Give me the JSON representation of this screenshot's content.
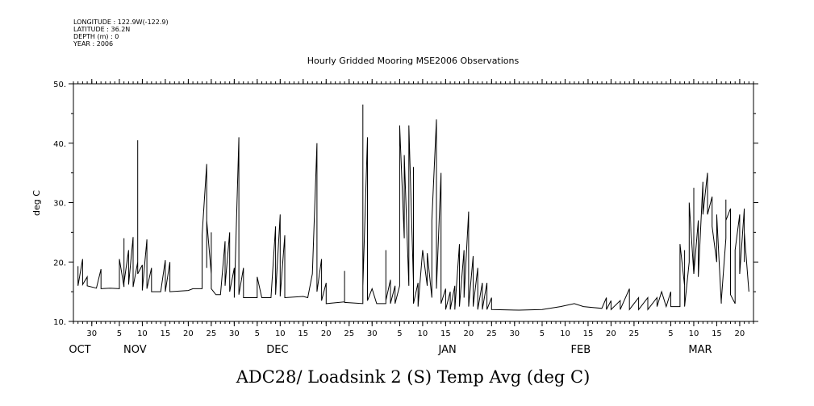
{
  "meta": {
    "longitude": "LONGITUDE : 122.9W(-122.9)",
    "latitude": "LATITUDE : 36.2N",
    "depth": "DEPTH (m) : 0",
    "year": "YEAR : 2006"
  },
  "title": "Hourly Gridded Mooring MSE2006 Observations",
  "footer": "ADC28/ Loadsink 2 (S) Temp Avg (deg C)",
  "chart_data": {
    "type": "line",
    "title": "Hourly Gridded Mooring MSE2006 Observations",
    "ylabel": "deg C",
    "xlabel": "ADC28/ Loadsink 2 (S) Temp Avg (deg C)",
    "ylim": [
      10,
      50
    ],
    "yticks": [
      10,
      20,
      30,
      40,
      50
    ],
    "ytick_labels": [
      "10.",
      "20.",
      "30.",
      "40.",
      "50."
    ],
    "xlim": [
      "2005-10-26",
      "2006-03-23"
    ],
    "day_tick_labels": [
      {
        "date": "2005-10-30",
        "label": "30"
      },
      {
        "date": "2005-11-05",
        "label": "5"
      },
      {
        "date": "2005-11-10",
        "label": "10"
      },
      {
        "date": "2005-11-15",
        "label": "15"
      },
      {
        "date": "2005-11-20",
        "label": "20"
      },
      {
        "date": "2005-11-25",
        "label": "25"
      },
      {
        "date": "2005-11-30",
        "label": "30"
      },
      {
        "date": "2005-12-05",
        "label": "5"
      },
      {
        "date": "2005-12-10",
        "label": "10"
      },
      {
        "date": "2005-12-15",
        "label": "15"
      },
      {
        "date": "2005-12-20",
        "label": "20"
      },
      {
        "date": "2005-12-25",
        "label": "25"
      },
      {
        "date": "2005-12-30",
        "label": "30"
      },
      {
        "date": "2006-01-05",
        "label": "5"
      },
      {
        "date": "2006-01-10",
        "label": "10"
      },
      {
        "date": "2006-01-15",
        "label": "15"
      },
      {
        "date": "2006-01-20",
        "label": "20"
      },
      {
        "date": "2006-01-25",
        "label": "25"
      },
      {
        "date": "2006-01-30",
        "label": "30"
      },
      {
        "date": "2006-02-05",
        "label": "5"
      },
      {
        "date": "2006-02-10",
        "label": "10"
      },
      {
        "date": "2006-02-15",
        "label": "15"
      },
      {
        "date": "2006-02-20",
        "label": "20"
      },
      {
        "date": "2006-02-25",
        "label": "25"
      },
      {
        "date": "2006-03-05",
        "label": "5"
      },
      {
        "date": "2006-03-10",
        "label": "10"
      },
      {
        "date": "2006-03-15",
        "label": "15"
      },
      {
        "date": "2006-03-20",
        "label": "20"
      }
    ],
    "month_labels": [
      {
        "date": "2005-10-26",
        "label": "OCT"
      },
      {
        "date": "2005-11-07",
        "label": "NOV"
      },
      {
        "date": "2005-12-08",
        "label": "DEC"
      },
      {
        "date": "2006-01-14",
        "label": "JAN"
      },
      {
        "date": "2006-02-12",
        "label": "FEB"
      },
      {
        "date": "2006-03-10",
        "label": "MAR"
      }
    ],
    "series": [
      {
        "color": "#000000",
        "points": [
          [
            "2005-10-27",
            16.2
          ],
          [
            "2005-10-27",
            19.3
          ],
          [
            "2005-10-27",
            16.0
          ],
          [
            "2005-10-28",
            20.5
          ],
          [
            "2005-10-28",
            16.2
          ],
          [
            "2005-10-29",
            17.5
          ],
          [
            "2005-10-29",
            16.0
          ],
          [
            "2005-10-31",
            15.6
          ],
          [
            "2005-11-01",
            18.8
          ],
          [
            "2005-11-01",
            15.5
          ],
          [
            "2005-11-03",
            15.6
          ],
          [
            "2005-11-05",
            15.5
          ],
          [
            "2005-11-05",
            20.5
          ],
          [
            "2005-11-06",
            15.8
          ],
          [
            "2005-11-06",
            24.0
          ],
          [
            "2005-11-06",
            16.5
          ],
          [
            "2005-11-07",
            22.0
          ],
          [
            "2005-11-07",
            16.2
          ],
          [
            "2005-11-08",
            24.2
          ],
          [
            "2005-11-08",
            15.8
          ],
          [
            "2005-11-09",
            20.0
          ],
          [
            "2005-11-09",
            40.5
          ],
          [
            "2005-11-09",
            18.0
          ],
          [
            "2005-11-10",
            19.5
          ],
          [
            "2005-11-10",
            15.2
          ],
          [
            "2005-11-11",
            23.8
          ],
          [
            "2005-11-11",
            15.5
          ],
          [
            "2005-11-12",
            19.0
          ],
          [
            "2005-11-12",
            15.0
          ],
          [
            "2005-11-14",
            15.0
          ],
          [
            "2005-11-15",
            20.3
          ],
          [
            "2005-11-15",
            15.0
          ],
          [
            "2005-11-16",
            20.0
          ],
          [
            "2005-11-16",
            15.0
          ],
          [
            "2005-11-20",
            15.2
          ],
          [
            "2005-11-21",
            15.5
          ],
          [
            "2005-11-23",
            15.5
          ],
          [
            "2005-11-23",
            24.5
          ],
          [
            "2005-11-24",
            36.5
          ],
          [
            "2005-11-24",
            19.0
          ],
          [
            "2005-11-24",
            27.0
          ],
          [
            "2005-11-25",
            18.0
          ],
          [
            "2005-11-25",
            25.0
          ],
          [
            "2005-11-25",
            15.5
          ],
          [
            "2005-11-26",
            14.5
          ],
          [
            "2005-11-27",
            14.5
          ],
          [
            "2005-11-28",
            23.5
          ],
          [
            "2005-11-28",
            16.0
          ],
          [
            "2005-11-29",
            25.0
          ],
          [
            "2005-11-29",
            15.0
          ],
          [
            "2005-11-30",
            19.0
          ],
          [
            "2005-11-30",
            14.0
          ],
          [
            "2005-12-01",
            41.0
          ],
          [
            "2005-12-01",
            14.5
          ],
          [
            "2005-12-02",
            19.0
          ],
          [
            "2005-12-02",
            14.0
          ],
          [
            "2005-12-05",
            14.0
          ],
          [
            "2005-12-05",
            17.5
          ],
          [
            "2005-12-06",
            14.0
          ],
          [
            "2005-12-08",
            14.0
          ],
          [
            "2005-12-09",
            26.0
          ],
          [
            "2005-12-09",
            14.5
          ],
          [
            "2005-12-10",
            28.0
          ],
          [
            "2005-12-10",
            14.2
          ],
          [
            "2005-12-11",
            24.5
          ],
          [
            "2005-12-11",
            14.0
          ],
          [
            "2005-12-15",
            14.2
          ],
          [
            "2005-12-16",
            14.0
          ],
          [
            "2005-12-17",
            18.0
          ],
          [
            "2005-12-18",
            40.0
          ],
          [
            "2005-12-18",
            15.0
          ],
          [
            "2005-12-19",
            20.5
          ],
          [
            "2005-12-19",
            13.5
          ],
          [
            "2005-12-20",
            16.5
          ],
          [
            "2005-12-20",
            13.0
          ],
          [
            "2005-12-24",
            13.3
          ],
          [
            "2005-12-24",
            18.5
          ],
          [
            "2005-12-24",
            13.2
          ],
          [
            "2005-12-28",
            13.0
          ],
          [
            "2005-12-28",
            36.0
          ],
          [
            "2005-12-28",
            46.5
          ],
          [
            "2005-12-28",
            16.0
          ],
          [
            "2005-12-29",
            41.0
          ],
          [
            "2005-12-29",
            13.5
          ],
          [
            "2005-12-30",
            15.5
          ],
          [
            "2005-12-31",
            13.0
          ],
          [
            "2006-01-02",
            13.0
          ],
          [
            "2006-01-02",
            22.0
          ],
          [
            "2006-01-02",
            13.5
          ],
          [
            "2006-01-03",
            17.0
          ],
          [
            "2006-01-03",
            13.0
          ],
          [
            "2006-01-04",
            16.0
          ],
          [
            "2006-01-04",
            13.0
          ],
          [
            "2006-01-05",
            16.0
          ],
          [
            "2006-01-05",
            43.0
          ],
          [
            "2006-01-06",
            24.0
          ],
          [
            "2006-01-06",
            38.0
          ],
          [
            "2006-01-07",
            16.0
          ],
          [
            "2006-01-07",
            43.0
          ],
          [
            "2006-01-08",
            16.5
          ],
          [
            "2006-01-08",
            36.0
          ],
          [
            "2006-01-08",
            13.0
          ],
          [
            "2006-01-09",
            16.5
          ],
          [
            "2006-01-09",
            12.5
          ],
          [
            "2006-01-10",
            22.0
          ],
          [
            "2006-01-11",
            16.0
          ],
          [
            "2006-01-11",
            21.5
          ],
          [
            "2006-01-12",
            14.0
          ],
          [
            "2006-01-12",
            27.0
          ],
          [
            "2006-01-13",
            44.0
          ],
          [
            "2006-01-13",
            15.5
          ],
          [
            "2006-01-14",
            35.0
          ],
          [
            "2006-01-14",
            13.0
          ],
          [
            "2006-01-15",
            15.5
          ],
          [
            "2006-01-15",
            12.0
          ],
          [
            "2006-01-16",
            15.0
          ],
          [
            "2006-01-16",
            12.0
          ],
          [
            "2006-01-17",
            16.0
          ],
          [
            "2006-01-17",
            12.0
          ],
          [
            "2006-01-18",
            23.0
          ],
          [
            "2006-01-18",
            12.5
          ],
          [
            "2006-01-19",
            22.0
          ],
          [
            "2006-01-19",
            14.0
          ],
          [
            "2006-01-20",
            28.5
          ],
          [
            "2006-01-20",
            12.5
          ],
          [
            "2006-01-21",
            21.0
          ],
          [
            "2006-01-21",
            12.5
          ],
          [
            "2006-01-22",
            19.0
          ],
          [
            "2006-01-22",
            12.0
          ],
          [
            "2006-01-23",
            16.5
          ],
          [
            "2006-01-23",
            12.0
          ],
          [
            "2006-01-24",
            16.5
          ],
          [
            "2006-01-24",
            12.0
          ],
          [
            "2006-01-25",
            14.0
          ],
          [
            "2006-01-25",
            12.0
          ],
          [
            "2006-01-31",
            11.9
          ],
          [
            "2006-02-05",
            12.0
          ],
          [
            "2006-02-09",
            12.5
          ],
          [
            "2006-02-12",
            13.0
          ],
          [
            "2006-02-14",
            12.5
          ],
          [
            "2006-02-18",
            12.2
          ],
          [
            "2006-02-19",
            14.0
          ],
          [
            "2006-02-19",
            12.0
          ],
          [
            "2006-02-20",
            13.5
          ],
          [
            "2006-02-20",
            12.0
          ],
          [
            "2006-02-22",
            13.5
          ],
          [
            "2006-02-22",
            12.0
          ],
          [
            "2006-02-24",
            15.5
          ],
          [
            "2006-02-24",
            12.0
          ],
          [
            "2006-02-26",
            14.0
          ],
          [
            "2006-02-26",
            12.0
          ],
          [
            "2006-02-28",
            14.0
          ],
          [
            "2006-02-28",
            12.0
          ],
          [
            "2006-03-02",
            14.0
          ],
          [
            "2006-03-02",
            12.5
          ],
          [
            "2006-03-03",
            15.0
          ],
          [
            "2006-03-04",
            12.5
          ],
          [
            "2006-03-05",
            15.0
          ],
          [
            "2006-03-05",
            12.5
          ],
          [
            "2006-03-07",
            12.5
          ],
          [
            "2006-03-07",
            23.0
          ],
          [
            "2006-03-08",
            16.0
          ],
          [
            "2006-03-08",
            22.0
          ],
          [
            "2006-03-08",
            12.5
          ],
          [
            "2006-03-09",
            20.0
          ],
          [
            "2006-03-09",
            30.0
          ],
          [
            "2006-03-10",
            18.0
          ],
          [
            "2006-03-10",
            32.5
          ],
          [
            "2006-03-10",
            18.0
          ],
          [
            "2006-03-11",
            27.0
          ],
          [
            "2006-03-11",
            17.5
          ],
          [
            "2006-03-12",
            33.5
          ],
          [
            "2006-03-12",
            28.0
          ],
          [
            "2006-03-13",
            35.0
          ],
          [
            "2006-03-13",
            28.0
          ],
          [
            "2006-03-14",
            31.0
          ],
          [
            "2006-03-14",
            26.0
          ],
          [
            "2006-03-15",
            20.0
          ],
          [
            "2006-03-15",
            28.0
          ],
          [
            "2006-03-16",
            13.0
          ],
          [
            "2006-03-16",
            13.5
          ],
          [
            "2006-03-17",
            24.0
          ],
          [
            "2006-03-17",
            30.5
          ],
          [
            "2006-03-17",
            27.0
          ],
          [
            "2006-03-18",
            29.0
          ],
          [
            "2006-03-18",
            14.5
          ],
          [
            "2006-03-19",
            13.0
          ],
          [
            "2006-03-19",
            22.0
          ],
          [
            "2006-03-20",
            28.0
          ],
          [
            "2006-03-20",
            18.0
          ],
          [
            "2006-03-21",
            29.0
          ],
          [
            "2006-03-21",
            20.0
          ],
          [
            "2006-03-21",
            25.0
          ],
          [
            "2006-03-22",
            15.0
          ]
        ]
      }
    ]
  }
}
